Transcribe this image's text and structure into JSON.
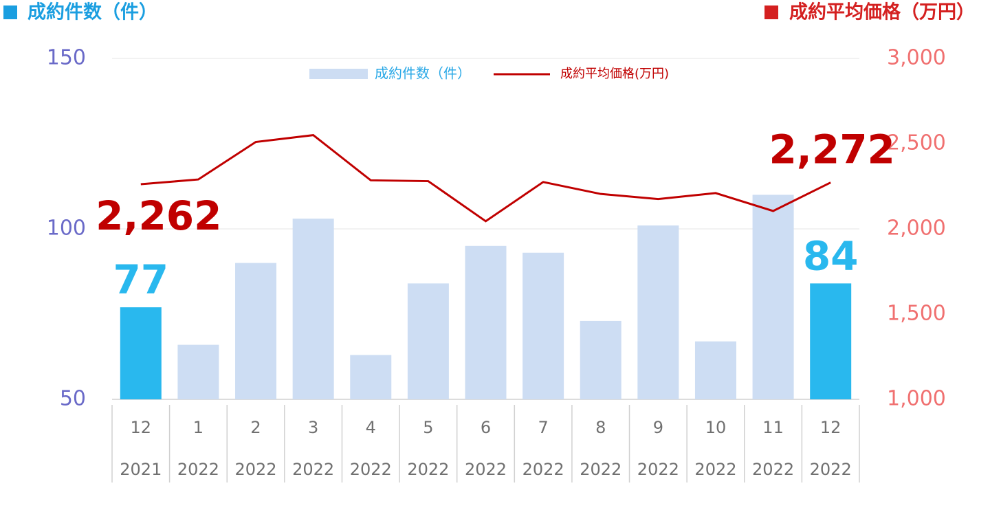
{
  "chart_data": {
    "type": "bar_line",
    "y_title": "成約件数（件）",
    "y_title_color": "#1a9ee0",
    "y2_title": "成約平均価格（万円）",
    "y2_title_color": "#d42020",
    "categories": [
      "12",
      "1",
      "2",
      "3",
      "4",
      "5",
      "6",
      "7",
      "8",
      "9",
      "10",
      "11",
      "12"
    ],
    "category_years": [
      "2021",
      "2022",
      "2022",
      "2022",
      "2022",
      "2022",
      "2022",
      "2022",
      "2022",
      "2022",
      "2022",
      "2022",
      "2022"
    ],
    "series": [
      {
        "name": "成約件数（件）",
        "type": "bar",
        "color": "#cdddf3",
        "highlight_color": "#29b8ee",
        "legend_text_color": "#29a8e6",
        "values": [
          77,
          66,
          90,
          103,
          63,
          84,
          95,
          93,
          73,
          101,
          67,
          110,
          84
        ],
        "value_labels": [
          "77",
          null,
          null,
          null,
          null,
          null,
          null,
          null,
          null,
          null,
          null,
          null,
          "84"
        ]
      },
      {
        "name": "成約平均価格(万円)",
        "type": "line",
        "axis": "y2",
        "color": "#c00000",
        "values": [
          2262,
          2290,
          2510,
          2550,
          2285,
          2280,
          2045,
          2275,
          2205,
          2175,
          2210,
          2105,
          2272
        ],
        "value_labels": [
          "2,262",
          null,
          null,
          null,
          null,
          null,
          null,
          null,
          null,
          null,
          null,
          null,
          "2,272"
        ]
      }
    ],
    "ylim": [
      50,
      150
    ],
    "yticks": [
      50,
      100,
      150
    ],
    "ytick_color": "#6a6ac8",
    "y2lim": [
      1000,
      3000
    ],
    "y2ticks": [
      {
        "value": 1000,
        "label": "1,000"
      },
      {
        "value": 1500,
        "label": "1,500"
      },
      {
        "value": 2000,
        "label": "2,000"
      },
      {
        "value": 2500,
        "label": "2,500"
      },
      {
        "value": 3000,
        "label": "3,000"
      }
    ],
    "y2tick_color": "#f07070",
    "grid": true
  }
}
